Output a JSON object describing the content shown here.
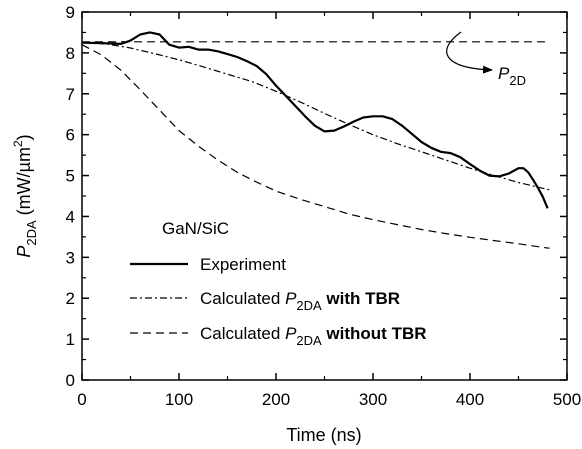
{
  "chart_data": {
    "type": "line",
    "xlabel": "Time (ns)",
    "ylabel": {
      "p": "P",
      "sub": "2DA",
      "unit_pre": " (mW/µm",
      "unit_sup": "2",
      "unit_post": ")"
    },
    "xlim": [
      0,
      500
    ],
    "ylim": [
      0,
      9
    ],
    "x_ticks": [
      0,
      100,
      200,
      300,
      400,
      500
    ],
    "y_ticks": [
      0,
      1,
      2,
      3,
      4,
      5,
      6,
      7,
      8,
      9
    ],
    "sample_label": "GaN/SiC",
    "annotation": {
      "p": "P",
      "sub": "2D"
    },
    "series": [
      {
        "key": "experiment",
        "style": "solid",
        "legend": {
          "plain": "Experiment"
        },
        "points": [
          [
            0,
            8.25
          ],
          [
            20,
            8.24
          ],
          [
            40,
            8.22
          ],
          [
            50,
            8.3
          ],
          [
            60,
            8.45
          ],
          [
            70,
            8.5
          ],
          [
            80,
            8.45
          ],
          [
            90,
            8.2
          ],
          [
            100,
            8.13
          ],
          [
            110,
            8.15
          ],
          [
            120,
            8.08
          ],
          [
            130,
            8.08
          ],
          [
            140,
            8.04
          ],
          [
            150,
            7.97
          ],
          [
            160,
            7.9
          ],
          [
            170,
            7.8
          ],
          [
            180,
            7.68
          ],
          [
            190,
            7.48
          ],
          [
            200,
            7.2
          ],
          [
            210,
            6.95
          ],
          [
            220,
            6.7
          ],
          [
            230,
            6.45
          ],
          [
            240,
            6.22
          ],
          [
            250,
            6.08
          ],
          [
            260,
            6.1
          ],
          [
            270,
            6.2
          ],
          [
            280,
            6.32
          ],
          [
            290,
            6.42
          ],
          [
            300,
            6.45
          ],
          [
            310,
            6.45
          ],
          [
            320,
            6.38
          ],
          [
            330,
            6.22
          ],
          [
            340,
            6.02
          ],
          [
            350,
            5.82
          ],
          [
            360,
            5.68
          ],
          [
            370,
            5.58
          ],
          [
            380,
            5.55
          ],
          [
            390,
            5.45
          ],
          [
            400,
            5.28
          ],
          [
            410,
            5.12
          ],
          [
            420,
            5.0
          ],
          [
            430,
            4.98
          ],
          [
            440,
            5.05
          ],
          [
            450,
            5.18
          ],
          [
            455,
            5.18
          ],
          [
            460,
            5.08
          ],
          [
            465,
            4.9
          ],
          [
            470,
            4.7
          ],
          [
            475,
            4.48
          ],
          [
            480,
            4.2
          ]
        ]
      },
      {
        "key": "with_tbr",
        "style": "dashdot",
        "legend": {
          "pre": "Calculated ",
          "p": "P",
          "sub": "2DA",
          "bold": " with TBR"
        },
        "points": [
          [
            0,
            8.25
          ],
          [
            25,
            8.22
          ],
          [
            50,
            8.12
          ],
          [
            75,
            7.98
          ],
          [
            100,
            7.83
          ],
          [
            125,
            7.66
          ],
          [
            150,
            7.48
          ],
          [
            175,
            7.3
          ],
          [
            200,
            7.06
          ],
          [
            225,
            6.8
          ],
          [
            250,
            6.52
          ],
          [
            275,
            6.25
          ],
          [
            300,
            6.0
          ],
          [
            325,
            5.78
          ],
          [
            350,
            5.58
          ],
          [
            375,
            5.38
          ],
          [
            400,
            5.18
          ],
          [
            425,
            5.0
          ],
          [
            450,
            4.83
          ],
          [
            482,
            4.65
          ]
        ]
      },
      {
        "key": "without_tbr",
        "style": "dashed",
        "legend": {
          "pre": "Calculated ",
          "p": "P",
          "sub": "2DA",
          "bold": " without TBR"
        },
        "points": [
          [
            0,
            8.2
          ],
          [
            20,
            7.95
          ],
          [
            40,
            7.58
          ],
          [
            60,
            7.1
          ],
          [
            80,
            6.6
          ],
          [
            100,
            6.1
          ],
          [
            120,
            5.72
          ],
          [
            140,
            5.38
          ],
          [
            160,
            5.08
          ],
          [
            180,
            4.84
          ],
          [
            200,
            4.62
          ],
          [
            225,
            4.42
          ],
          [
            250,
            4.24
          ],
          [
            275,
            4.06
          ],
          [
            300,
            3.92
          ],
          [
            325,
            3.8
          ],
          [
            350,
            3.68
          ],
          [
            375,
            3.58
          ],
          [
            400,
            3.49
          ],
          [
            425,
            3.41
          ],
          [
            450,
            3.33
          ],
          [
            482,
            3.22
          ]
        ]
      },
      {
        "key": "p2d",
        "style": "dashed",
        "points": [
          [
            0,
            8.27
          ],
          [
            482,
            8.27
          ]
        ]
      }
    ]
  }
}
